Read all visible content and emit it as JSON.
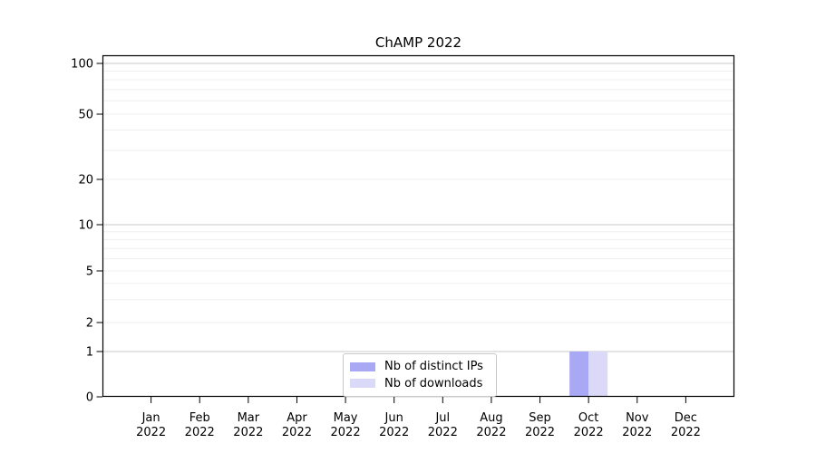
{
  "chart_data": {
    "type": "bar",
    "title": "ChAMP 2022",
    "categories": [
      "Jan",
      "Feb",
      "Mar",
      "Apr",
      "May",
      "Jun",
      "Jul",
      "Aug",
      "Sep",
      "Oct",
      "Nov",
      "Dec"
    ],
    "category_year": "2022",
    "series": [
      {
        "name": "Nb of distinct IPs",
        "color": "#a8a8f4",
        "values": [
          0,
          0,
          0,
          0,
          0,
          0,
          0,
          0,
          0,
          1,
          0,
          0
        ]
      },
      {
        "name": "Nb of downloads",
        "color": "#dadaf8",
        "values": [
          0,
          0,
          0,
          0,
          0,
          0,
          0,
          0,
          0,
          1,
          0,
          0
        ]
      }
    ],
    "xlabel": "",
    "ylabel": "",
    "y_axis": {
      "scale": "symlog",
      "ylim": [
        0,
        112
      ],
      "tick_values": [
        0,
        1,
        2,
        5,
        10,
        20,
        50,
        100
      ],
      "tick_labels": [
        "0",
        "1",
        "2",
        "5",
        "10",
        "20",
        "50",
        "100"
      ],
      "major_gridline_values": [
        1,
        10,
        100
      ],
      "minor_gridline_values": [
        2,
        3,
        4,
        5,
        6,
        7,
        8,
        9,
        20,
        30,
        40,
        50,
        60,
        70,
        80,
        90
      ]
    },
    "grid": {
      "horizontal": true,
      "vertical": false
    },
    "legend": {
      "position": "bottom-center",
      "entries": [
        "Nb of distinct IPs",
        "Nb of downloads"
      ]
    },
    "colors": {
      "bar_distinct_ips": "#a8a8f4",
      "bar_downloads": "#dadaf8"
    }
  }
}
